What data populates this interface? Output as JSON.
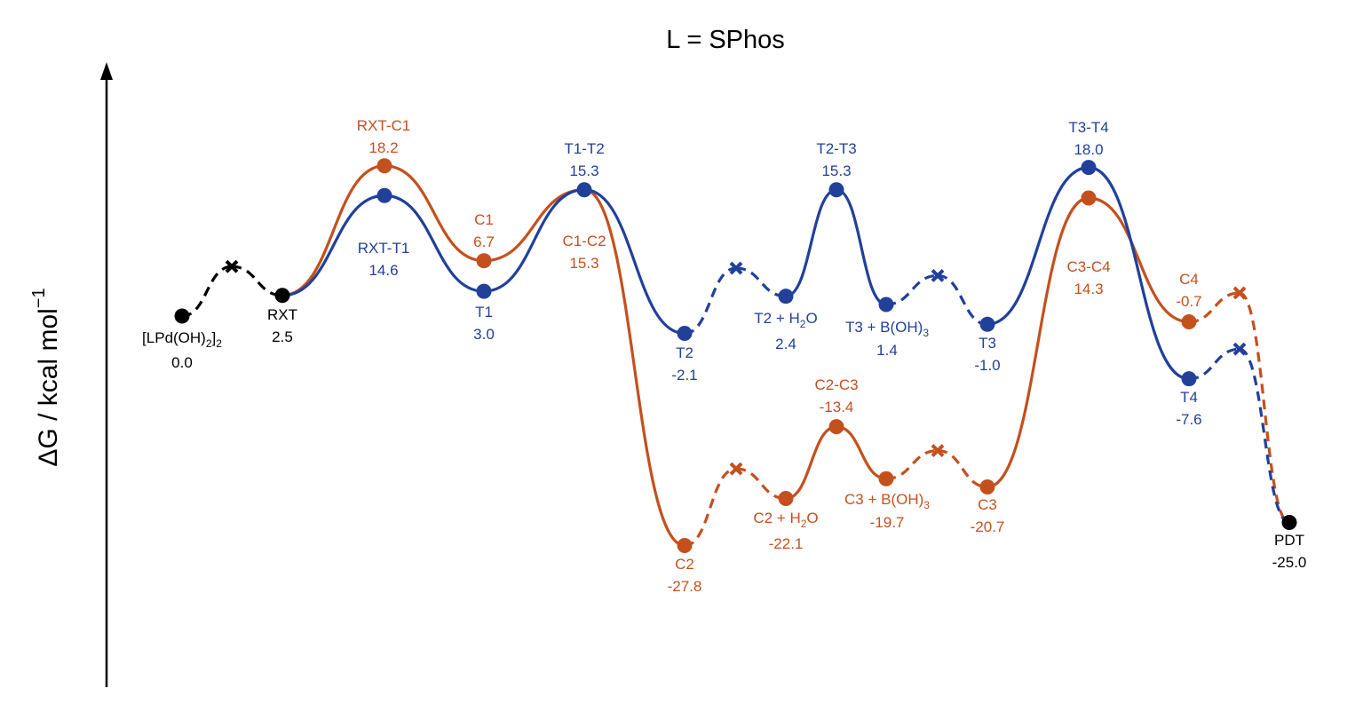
{
  "chart_data": {
    "type": "line",
    "title": "L = SPhos",
    "ylabel_main": "ΔG / kcal mol",
    "ylabel_sup": "−1",
    "colors": {
      "orange": "#C4501E",
      "blue": "#21409A",
      "black": "#000000"
    },
    "points": {
      "R": {
        "label": [
          "[LPd(OH)",
          "2",
          "]",
          "2"
        ],
        "value": "0.0",
        "energy": 0.0
      },
      "RXT": {
        "label": "RXT",
        "value": "2.5",
        "energy": 2.5
      },
      "RXT-C1": {
        "label": "RXT-C1",
        "value": "18.2",
        "energy": 18.2
      },
      "RXT-T1": {
        "label": "RXT-T1",
        "value": "14.6",
        "energy": 14.6
      },
      "C1": {
        "label": "C1",
        "value": "6.7",
        "energy": 6.7
      },
      "T1": {
        "label": "T1",
        "value": "3.0",
        "energy": 3.0
      },
      "T1-T2": {
        "label": "T1-T2",
        "value": "15.3",
        "energy": 15.3
      },
      "C1-C2": {
        "label": "C1-C2",
        "value": "15.3",
        "energy": 15.3
      },
      "T2": {
        "label": "T2",
        "value": "-2.1",
        "energy": -2.1
      },
      "T2H2O": {
        "label": [
          "T2 + H",
          "2",
          "O"
        ],
        "value": "2.4",
        "energy": 2.4
      },
      "T2-T3": {
        "label": "T2-T3",
        "value": "15.3",
        "energy": 15.3
      },
      "T3B": {
        "label": [
          "T3 + B(OH)",
          "3",
          ""
        ],
        "value": "1.4",
        "energy": 1.4
      },
      "T3": {
        "label": "T3",
        "value": "-1.0",
        "energy": -1.0
      },
      "T3-T4": {
        "label": "T3-T4",
        "value": "18.0",
        "energy": 18.0
      },
      "T4": {
        "label": "T4",
        "value": "-7.6",
        "energy": -7.6
      },
      "C2": {
        "label": "C2",
        "value": "-27.8",
        "energy": -27.8
      },
      "C2H2O": {
        "label": [
          "C2 + H",
          "2",
          "O"
        ],
        "value": "-22.1",
        "energy": -22.1
      },
      "C2-C3": {
        "label": "C2-C3",
        "value": "-13.4",
        "energy": -13.4
      },
      "C3B": {
        "label": [
          "C3 + B(OH)",
          "3",
          ""
        ],
        "value": "-19.7",
        "energy": -19.7
      },
      "C3": {
        "label": "C3",
        "value": "-20.7",
        "energy": -20.7
      },
      "C3-C4": {
        "label": "C3-C4",
        "value": "14.3",
        "energy": 14.3
      },
      "C4": {
        "label": "C4",
        "value": "-0.7",
        "energy": -0.7
      },
      "PDT": {
        "label": "PDT",
        "value": "-25.0",
        "energy": -25.0
      }
    }
  }
}
